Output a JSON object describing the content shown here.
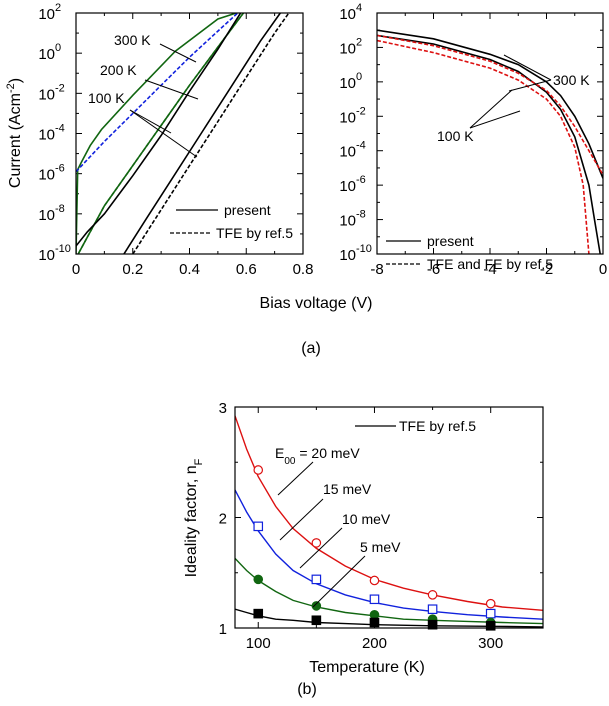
{
  "caption_a": "(a)",
  "caption_b": "(b)",
  "shared_xlabel": "Bias voltage (V)",
  "colors": {
    "red": "#dd1111",
    "blue": "#1122dd",
    "green": "#116611",
    "black": "#000000"
  },
  "chart_data": [
    {
      "id": "forward",
      "type": "line",
      "y_scale": "log",
      "xlim": [
        0,
        0.8
      ],
      "ylim_log10": [
        -10,
        2
      ],
      "x_ticks": [
        "0",
        "0.2",
        "0.4",
        "0.6",
        "0.8"
      ],
      "ylabel": {
        "main": "Current (Acm",
        "sup": "-2",
        "end": ")"
      },
      "y_ticks": [
        {
          "exp": "2"
        },
        {
          "exp": "0"
        },
        {
          "exp": "-2"
        },
        {
          "exp": "-4"
        },
        {
          "exp": "-6"
        },
        {
          "exp": "-8"
        },
        {
          "exp": "-10"
        }
      ],
      "annotations": [
        "300 K",
        "200 K",
        "100 K"
      ],
      "legend": [
        {
          "label": "present",
          "style": "solid"
        },
        {
          "label": "TFE by ref.5",
          "style": "dashed"
        }
      ],
      "series": [
        {
          "temperature": "300 K",
          "kind": "present",
          "color": "#116611",
          "dash": false,
          "points": [
            [
              0.0,
              -10
            ],
            [
              0.006,
              -5.8
            ],
            [
              0.02,
              -5.4
            ],
            [
              0.05,
              -4.6
            ],
            [
              0.09,
              -3.8
            ],
            [
              0.2,
              -2.1
            ],
            [
              0.35,
              0.1
            ],
            [
              0.5,
              1.7
            ],
            [
              0.565,
              2
            ]
          ]
        },
        {
          "temperature": "300 K",
          "kind": "TFE",
          "color": "#1122dd",
          "dash": true,
          "points": [
            [
              0.0,
              -5.9
            ],
            [
              0.1,
              -4.4
            ],
            [
              0.2,
              -3.0
            ],
            [
              0.3,
              -1.6
            ],
            [
              0.4,
              -0.2
            ],
            [
              0.5,
              1.1
            ],
            [
              0.57,
              2
            ]
          ]
        },
        {
          "temperature": "200 K",
          "kind": "present",
          "color": "#116611",
          "dash": false,
          "points": [
            [
              0.0,
              -10.2
            ],
            [
              0.1,
              -7.6
            ],
            [
              0.2,
              -5.6
            ],
            [
              0.3,
              -3.6
            ],
            [
              0.4,
              -1.6
            ],
            [
              0.5,
              0.3
            ],
            [
              0.59,
              2
            ]
          ]
        },
        {
          "temperature": "200 K",
          "kind": "TFE",
          "color": "#116611",
          "dash": true,
          "points": [
            [
              0.0,
              -10.2
            ],
            [
              0.1,
              -7.6
            ],
            [
              0.2,
              -5.6
            ],
            [
              0.3,
              -3.6
            ],
            [
              0.4,
              -1.6
            ],
            [
              0.5,
              0.3
            ],
            [
              0.59,
              2
            ]
          ]
        },
        {
          "temperature": "100 K",
          "kind": "present",
          "color": "#000000",
          "dash": false,
          "points": [
            [
              0.0,
              -9.6
            ],
            [
              0.04,
              -8.9
            ],
            [
              0.1,
              -8.0
            ],
            [
              0.2,
              -6.1
            ],
            [
              0.3,
              -4.1
            ],
            [
              0.4,
              -1.9
            ],
            [
              0.5,
              0.2
            ],
            [
              0.58,
              2
            ]
          ]
        },
        {
          "temperature": "100 K",
          "kind": "present",
          "color": "#000000",
          "dash": false,
          "points": [
            [
              0.16,
              -10.2
            ],
            [
              0.25,
              -8.2
            ],
            [
              0.35,
              -6.0
            ],
            [
              0.45,
              -3.8
            ],
            [
              0.55,
              -1.6
            ],
            [
              0.65,
              0.6
            ],
            [
              0.72,
              2
            ]
          ]
        },
        {
          "temperature": "100 K",
          "kind": "TFE",
          "color": "#000000",
          "dash": true,
          "points": [
            [
              0.2,
              -10
            ],
            [
              0.3,
              -7.8
            ],
            [
              0.4,
              -5.6
            ],
            [
              0.5,
              -3.4
            ],
            [
              0.6,
              -1.2
            ],
            [
              0.7,
              1.0
            ],
            [
              0.75,
              2
            ]
          ]
        }
      ]
    },
    {
      "id": "reverse",
      "type": "line",
      "y_scale": "log",
      "xlim": [
        -8,
        0
      ],
      "ylim_log10": [
        -10,
        4
      ],
      "x_ticks": [
        "-8",
        "-6",
        "-4",
        "-2",
        "0"
      ],
      "y_ticks": [
        {
          "exp": "4"
        },
        {
          "exp": "2"
        },
        {
          "exp": "0"
        },
        {
          "exp": "-2"
        },
        {
          "exp": "-4"
        },
        {
          "exp": "-6"
        },
        {
          "exp": "-8"
        },
        {
          "exp": "-10"
        }
      ],
      "annotations": [
        "300 K",
        "100 K"
      ],
      "legend": [
        {
          "label": "present",
          "style": "solid"
        },
        {
          "label": "TFE and FE by ref.5",
          "style": "dashed"
        }
      ],
      "series": [
        {
          "temperature": "300 K",
          "kind": "present",
          "color": "#000000",
          "dash": false,
          "points": [
            [
              -8,
              3.0
            ],
            [
              -6,
              2.5
            ],
            [
              -4,
              1.6
            ],
            [
              -3,
              1.0
            ],
            [
              -2,
              0.0
            ],
            [
              -1.5,
              -0.8
            ],
            [
              -1,
              -2.0
            ],
            [
              -0.5,
              -3.6
            ],
            [
              0,
              -5.6
            ]
          ]
        },
        {
          "temperature": "100 K",
          "kind": "present",
          "color": "#000000",
          "dash": false,
          "points": [
            [
              -8,
              2.7
            ],
            [
              -6,
              2.2
            ],
            [
              -4,
              1.3
            ],
            [
              -3,
              0.6
            ],
            [
              -2,
              -0.6
            ],
            [
              -1.5,
              -1.6
            ],
            [
              -1,
              -3.2
            ],
            [
              -0.5,
              -6.0
            ],
            [
              -0.3,
              -8.0
            ],
            [
              -0.1,
              -10
            ]
          ]
        },
        {
          "temperature": "300 K",
          "kind": "TFE/FE",
          "color": "#dd1111",
          "dash": true,
          "points": [
            [
              -8,
              2.7
            ],
            [
              -6,
              2.1
            ],
            [
              -4,
              1.2
            ],
            [
              -3,
              0.5
            ],
            [
              -2,
              -0.5
            ],
            [
              -1.5,
              -1.4
            ],
            [
              -1,
              -2.6
            ],
            [
              -0.5,
              -4.0
            ],
            [
              0,
              -5.4
            ]
          ]
        },
        {
          "temperature": "100 K",
          "kind": "TFE/FE",
          "color": "#dd1111",
          "dash": true,
          "points": [
            [
              -8,
              2.4
            ],
            [
              -6,
              1.7
            ],
            [
              -4,
              0.8
            ],
            [
              -3,
              0.1
            ],
            [
              -2,
              -1.0
            ],
            [
              -1.5,
              -2.0
            ],
            [
              -1,
              -3.8
            ],
            [
              -0.7,
              -6.0
            ],
            [
              -0.5,
              -10
            ]
          ]
        }
      ]
    },
    {
      "id": "ideality",
      "type": "line",
      "xlim": [
        80,
        345
      ],
      "ylim": [
        1,
        3
      ],
      "x_ticks": [
        {
          "v": 100,
          "label": "100"
        },
        {
          "v": 200,
          "label": "200"
        },
        {
          "v": 300,
          "label": "300"
        }
      ],
      "y_ticks": [
        {
          "v": 1,
          "label": "1"
        },
        {
          "v": 2,
          "label": "2"
        },
        {
          "v": 3,
          "label": "3"
        }
      ],
      "xlabel": "Temperature (K)",
      "ylabel": {
        "main": "Ideality factor, n",
        "sub": "F"
      },
      "legend": {
        "label": "TFE by ref.5"
      },
      "annotations": [
        {
          "pre": "E",
          "sub": "00",
          "post": " = 20 meV"
        },
        {
          "pre": "15 meV",
          "sub": "",
          "post": ""
        },
        {
          "pre": "10 meV",
          "sub": "",
          "post": ""
        },
        {
          "pre": "5 meV",
          "sub": "",
          "post": ""
        }
      ],
      "series": [
        {
          "name": "20 meV",
          "color": "#dd1111",
          "marker": "open-circle",
          "curve": [
            [
              80,
              2.92
            ],
            [
              90,
              2.62
            ],
            [
              100,
              2.37
            ],
            [
              115,
              2.1
            ],
            [
              130,
              1.9
            ],
            [
              150,
              1.72
            ],
            [
              175,
              1.56
            ],
            [
              200,
              1.44
            ],
            [
              225,
              1.36
            ],
            [
              250,
              1.3
            ],
            [
              280,
              1.24
            ],
            [
              310,
              1.19
            ],
            [
              345,
              1.16
            ]
          ],
          "points": [
            [
              100,
              2.43
            ],
            [
              150,
              1.77
            ],
            [
              200,
              1.43
            ],
            [
              250,
              1.3
            ],
            [
              300,
              1.22
            ]
          ]
        },
        {
          "name": "15 meV",
          "color": "#1122dd",
          "marker": "open-square",
          "curve": [
            [
              80,
              2.25
            ],
            [
              90,
              2.05
            ],
            [
              100,
              1.88
            ],
            [
              115,
              1.67
            ],
            [
              130,
              1.52
            ],
            [
              150,
              1.4
            ],
            [
              175,
              1.3
            ],
            [
              200,
              1.23
            ],
            [
              225,
              1.18
            ],
            [
              250,
              1.15
            ],
            [
              280,
              1.12
            ],
            [
              310,
              1.1
            ],
            [
              345,
              1.08
            ]
          ],
          "points": [
            [
              100,
              1.92
            ],
            [
              150,
              1.44
            ],
            [
              200,
              1.26
            ],
            [
              250,
              1.17
            ],
            [
              300,
              1.13
            ]
          ]
        },
        {
          "name": "10 meV",
          "color": "#116611",
          "marker": "filled-circle",
          "curve": [
            [
              80,
              1.63
            ],
            [
              90,
              1.52
            ],
            [
              100,
              1.43
            ],
            [
              115,
              1.33
            ],
            [
              130,
              1.25
            ],
            [
              150,
              1.19
            ],
            [
              175,
              1.14
            ],
            [
              200,
              1.11
            ],
            [
              225,
              1.08
            ],
            [
              250,
              1.07
            ],
            [
              280,
              1.06
            ],
            [
              310,
              1.05
            ],
            [
              345,
              1.04
            ]
          ],
          "points": [
            [
              100,
              1.44
            ],
            [
              150,
              1.2
            ],
            [
              200,
              1.12
            ],
            [
              250,
              1.08
            ],
            [
              300,
              1.05
            ]
          ]
        },
        {
          "name": "5 meV",
          "color": "#000000",
          "marker": "filled-square",
          "curve": [
            [
              80,
              1.17
            ],
            [
              90,
              1.14
            ],
            [
              100,
              1.11
            ],
            [
              115,
              1.08
            ],
            [
              130,
              1.07
            ],
            [
              150,
              1.05
            ],
            [
              175,
              1.04
            ],
            [
              200,
              1.03
            ],
            [
              250,
              1.02
            ],
            [
              300,
              1.015
            ],
            [
              345,
              1.01
            ]
          ],
          "points": [
            [
              100,
              1.13
            ],
            [
              150,
              1.07
            ],
            [
              200,
              1.05
            ],
            [
              250,
              1.03
            ],
            [
              300,
              1.02
            ]
          ]
        }
      ]
    }
  ]
}
